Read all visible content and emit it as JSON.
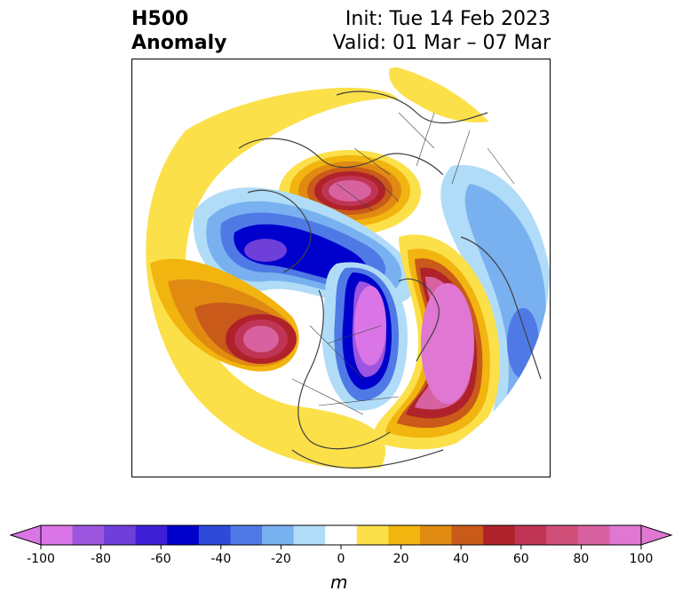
{
  "title": {
    "variable": "H500",
    "subtitle": "Anomaly",
    "init": "Init: Tue 14 Feb 2023",
    "valid": "Valid: 01 Mar – 07 Mar"
  },
  "colorbar": {
    "unit": "m",
    "tick_labels": [
      "-100",
      "-80",
      "-60",
      "-40",
      "-20",
      "0",
      "20",
      "40",
      "60",
      "80",
      "100"
    ],
    "levels": [
      -100,
      -90,
      -80,
      -70,
      -60,
      -50,
      -40,
      -30,
      -20,
      -10,
      10,
      20,
      30,
      40,
      50,
      60,
      70,
      80,
      90,
      100
    ],
    "colors": [
      "#d975e6",
      "#9c55de",
      "#6e3fd9",
      "#3d1fd6",
      "#0000cc",
      "#2e4ad9",
      "#4f7ae6",
      "#79b1f0",
      "#b0dcf7",
      "#ffffff",
      "#fbe04a",
      "#f2b40f",
      "#e08a12",
      "#c95a1a",
      "#b0222a",
      "#c03555",
      "#d0507a",
      "#d862a0",
      "#e077d2"
    ],
    "extend_low_color": "#d975e6",
    "extend_high_color": "#e077d2"
  },
  "map": {
    "projection": "north polar stereographic",
    "field": "500 hPa geopotential height anomaly"
  }
}
